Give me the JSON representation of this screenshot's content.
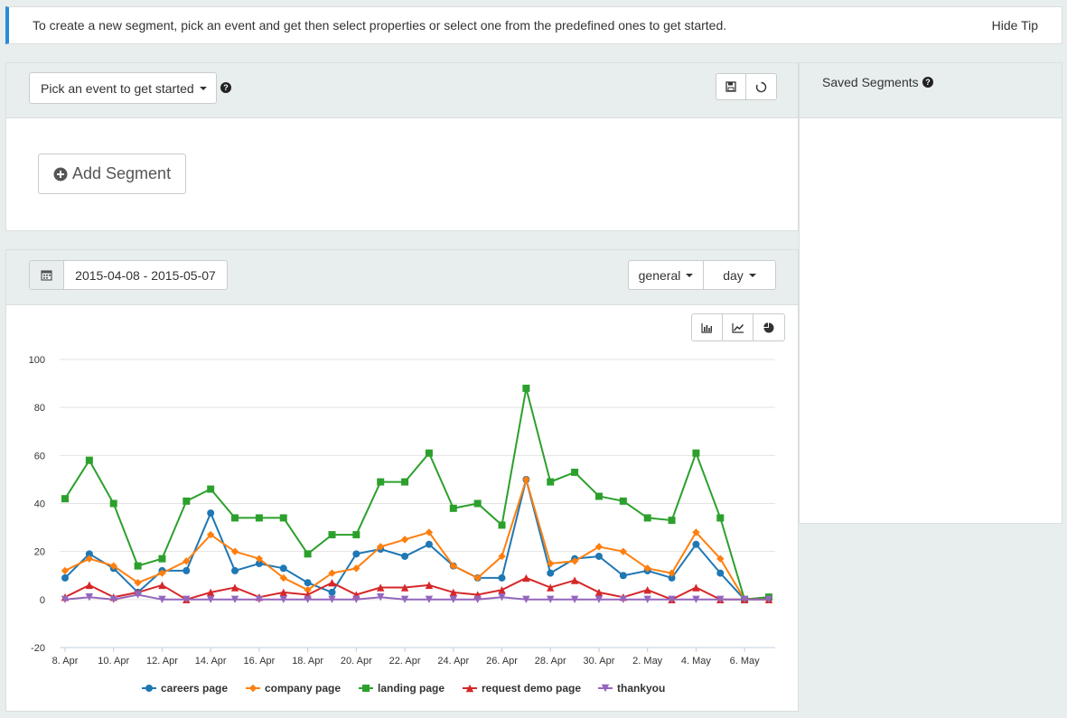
{
  "tip": {
    "text": "To create a new segment, pick an event and get then select properties or select one from the predefined ones to get started.",
    "hide_label": "Hide Tip"
  },
  "builder": {
    "event_picker_label": "Pick an event to get started",
    "add_segment_label": "Add Segment"
  },
  "saved": {
    "title": "Saved Segments"
  },
  "toolbar": {
    "date_range": "2015-04-08 - 2015-05-07",
    "metric_label": "general",
    "interval_label": "day"
  },
  "colors": {
    "accent": "#2a8bd8",
    "careers": "#1f77b4",
    "company": "#ff7f0e",
    "landing": "#2ca02c",
    "demo": "#d62728",
    "thankyou": "#9467bd"
  },
  "chart_data": {
    "type": "line",
    "ylim": [
      -20,
      100
    ],
    "yticks": [
      "100",
      "80",
      "60",
      "40",
      "20",
      "0",
      "-20"
    ],
    "ytick_values": [
      100,
      80,
      60,
      40,
      20,
      0,
      -20
    ],
    "xtick_labels": [
      "8. Apr",
      "10. Apr",
      "12. Apr",
      "14. Apr",
      "16. Apr",
      "18. Apr",
      "20. Apr",
      "22. Apr",
      "24. Apr",
      "26. Apr",
      "28. Apr",
      "30. Apr",
      "2. May",
      "4. May",
      "6. May"
    ],
    "x": [
      "8. Apr",
      "9. Apr",
      "10. Apr",
      "11. Apr",
      "12. Apr",
      "13. Apr",
      "14. Apr",
      "15. Apr",
      "16. Apr",
      "17. Apr",
      "18. Apr",
      "19. Apr",
      "20. Apr",
      "21. Apr",
      "22. Apr",
      "23. Apr",
      "24. Apr",
      "25. Apr",
      "26. Apr",
      "27. Apr",
      "28. Apr",
      "29. Apr",
      "30. Apr",
      "1. May",
      "2. May",
      "3. May",
      "4. May",
      "5. May",
      "6. May",
      "7. May"
    ],
    "grid": true,
    "legend_position": "bottom",
    "series": [
      {
        "name": "careers page",
        "key": "careers",
        "marker": "circle",
        "values": [
          9,
          19,
          13,
          3,
          12,
          12,
          36,
          12,
          15,
          13,
          7,
          3,
          19,
          21,
          18,
          23,
          14,
          9,
          9,
          50,
          11,
          17,
          18,
          10,
          12,
          9,
          23,
          11,
          0,
          1
        ]
      },
      {
        "name": "company page",
        "key": "company",
        "marker": "diamond",
        "values": [
          12,
          17,
          14,
          7,
          11,
          16,
          27,
          20,
          17,
          9,
          4,
          11,
          13,
          22,
          25,
          28,
          14,
          9,
          18,
          50,
          15,
          16,
          22,
          20,
          13,
          11,
          28,
          17,
          0,
          1
        ]
      },
      {
        "name": "landing page",
        "key": "landing",
        "marker": "square",
        "values": [
          42,
          58,
          40,
          14,
          17,
          41,
          46,
          34,
          34,
          34,
          19,
          27,
          27,
          49,
          49,
          61,
          38,
          40,
          31,
          88,
          49,
          53,
          43,
          41,
          34,
          33,
          61,
          34,
          0,
          1
        ]
      },
      {
        "name": "request demo page",
        "key": "demo",
        "marker": "triangle",
        "values": [
          1,
          6,
          1,
          3,
          6,
          0,
          3,
          5,
          1,
          3,
          2,
          7,
          2,
          5,
          5,
          6,
          3,
          2,
          4,
          9,
          5,
          8,
          3,
          1,
          4,
          0,
          5,
          0,
          0,
          0
        ]
      },
      {
        "name": "thankyou",
        "key": "thankyou",
        "marker": "triangle-down",
        "values": [
          0,
          1,
          0,
          2,
          0,
          0,
          0,
          0,
          0,
          0,
          0,
          0,
          0,
          1,
          0,
          0,
          0,
          0,
          1,
          0,
          0,
          0,
          0,
          0,
          0,
          0,
          0,
          0,
          0,
          0
        ]
      }
    ]
  }
}
